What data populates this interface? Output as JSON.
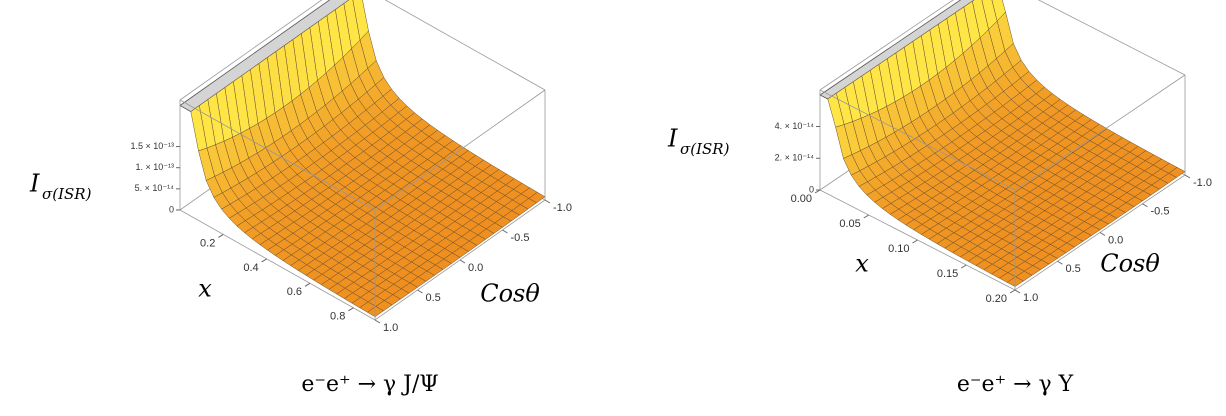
{
  "chart_data": [
    {
      "type": "surface",
      "caption": "e⁻e⁺ → γ J/Ψ",
      "zlabel": "I",
      "zlabel_subscript": "σ(ISR)",
      "xlabel": "x",
      "ylabel": "Cosθ",
      "xlim": [
        0,
        0.9
      ],
      "xticks": [
        0.2,
        0.4,
        0.6,
        0.8
      ],
      "ylim": [
        -1,
        1
      ],
      "yticks": [
        {
          "value": -1,
          "label": "-1.0"
        },
        -0.5,
        {
          "value": 0,
          "label": "0.0"
        },
        0.5,
        {
          "value": 1,
          "label": "1.0"
        }
      ],
      "zlim": [
        0,
        2.6e-13
      ],
      "zticks": [
        0,
        {
          "value": 5e-14,
          "label": "5. × 10⁻¹⁴"
        },
        {
          "value": 1e-13,
          "label": "1. × 10⁻¹³"
        },
        {
          "value": 1.5e-13,
          "label": "1.5 × 10⁻¹³"
        }
      ]
    },
    {
      "type": "surface",
      "caption": "e⁻e⁺ → γ Υ",
      "zlabel": "I",
      "zlabel_subscript": "σ(ISR)",
      "xlabel": "x",
      "ylabel": "Cosθ",
      "xlim": [
        0,
        0.2
      ],
      "xticks": [
        {
          "value": 0,
          "label": "0.00"
        },
        0.05,
        {
          "value": 0.1,
          "label": "0.10"
        },
        0.15,
        {
          "value": 0.2,
          "label": "0.20"
        }
      ],
      "ylim": [
        -1,
        1
      ],
      "yticks": [
        {
          "value": -1,
          "label": "-1.0"
        },
        -0.5,
        {
          "value": 0,
          "label": "0.0"
        },
        0.5,
        {
          "value": 1,
          "label": "1.0"
        }
      ],
      "zlim": [
        0,
        6.3e-14
      ],
      "zticks": [
        0,
        {
          "value": 2e-14,
          "label": "2. × 10⁻¹⁴"
        },
        {
          "value": 4e-14,
          "label": "4. × 10⁻¹⁴"
        }
      ]
    }
  ]
}
